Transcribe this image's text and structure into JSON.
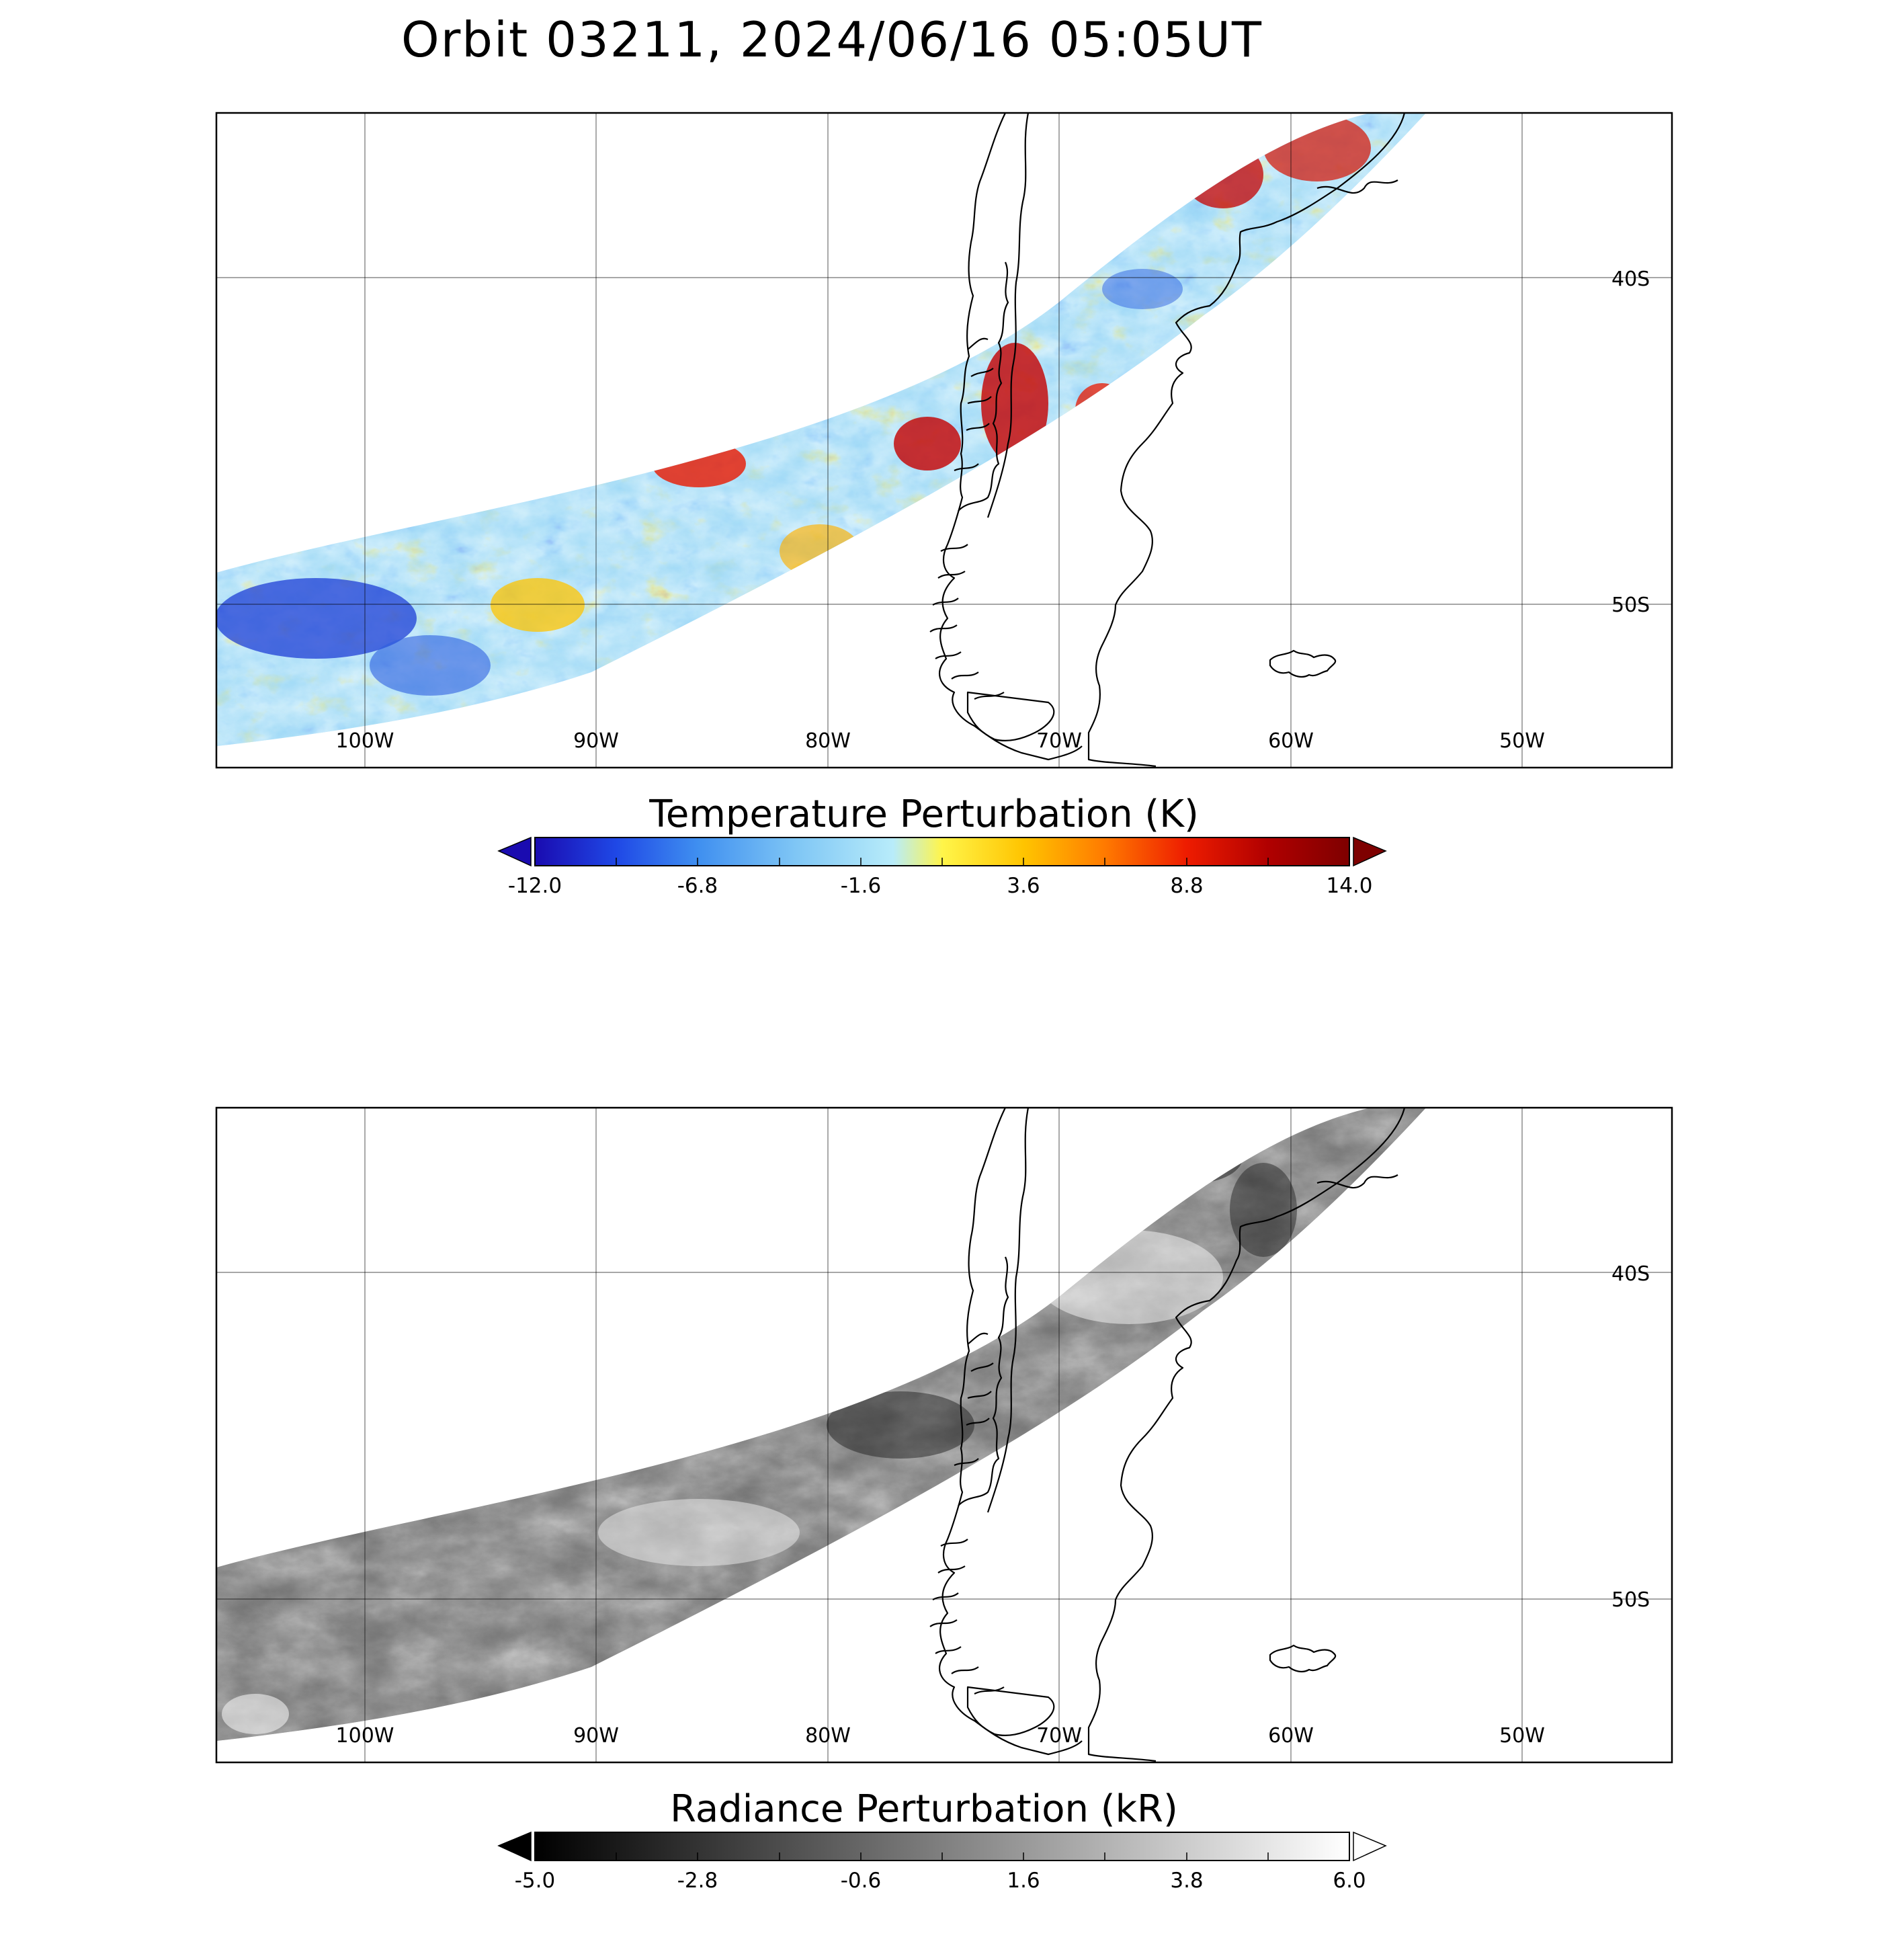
{
  "figure": {
    "title": "Orbit 03211, 2024/06/16 05:05UT"
  },
  "map": {
    "lon_labels": [
      "100W",
      "90W",
      "80W",
      "70W",
      "60W",
      "50W"
    ],
    "lat_labels": [
      "40S",
      "50S"
    ]
  },
  "panels": [
    {
      "id": "temperature",
      "colorbar": {
        "title": "Temperature Perturbation (K)",
        "ticks": [
          "-12.0",
          "-6.8",
          "-1.6",
          "3.6",
          "8.8",
          "14.0"
        ],
        "min": -12.0,
        "max": 14.0,
        "colormap": [
          "#1a0bb0",
          "#1f48e6",
          "#3f8ff0",
          "#7fc6f5",
          "#b8ecfa",
          "#fff54a",
          "#ffc400",
          "#ff7a00",
          "#ee1c00",
          "#b00000",
          "#7e0000"
        ]
      }
    },
    {
      "id": "radiance",
      "colorbar": {
        "title": "Radiance Perturbation (kR)",
        "ticks": [
          "-5.0",
          "-2.8",
          "-0.6",
          "1.6",
          "3.8",
          "6.0"
        ],
        "min": -5.0,
        "max": 6.0,
        "colormap": [
          "#000000",
          "#ffffff"
        ]
      }
    }
  ],
  "chart_data": {
    "type": "heatmap",
    "title": "Orbit 03211, 2024/06/16 05:05UT",
    "x_axis": {
      "ticks": [
        "100W",
        "90W",
        "80W",
        "70W",
        "60W",
        "50W"
      ]
    },
    "y_axis": {
      "ticks": [
        "40S",
        "50S"
      ]
    },
    "series": [
      {
        "name": "Temperature Perturbation (K)",
        "range": [
          -12.0,
          14.0
        ]
      },
      {
        "name": "Radiance Perturbation (kR)",
        "range": [
          -5.0,
          6.0
        ]
      }
    ]
  }
}
